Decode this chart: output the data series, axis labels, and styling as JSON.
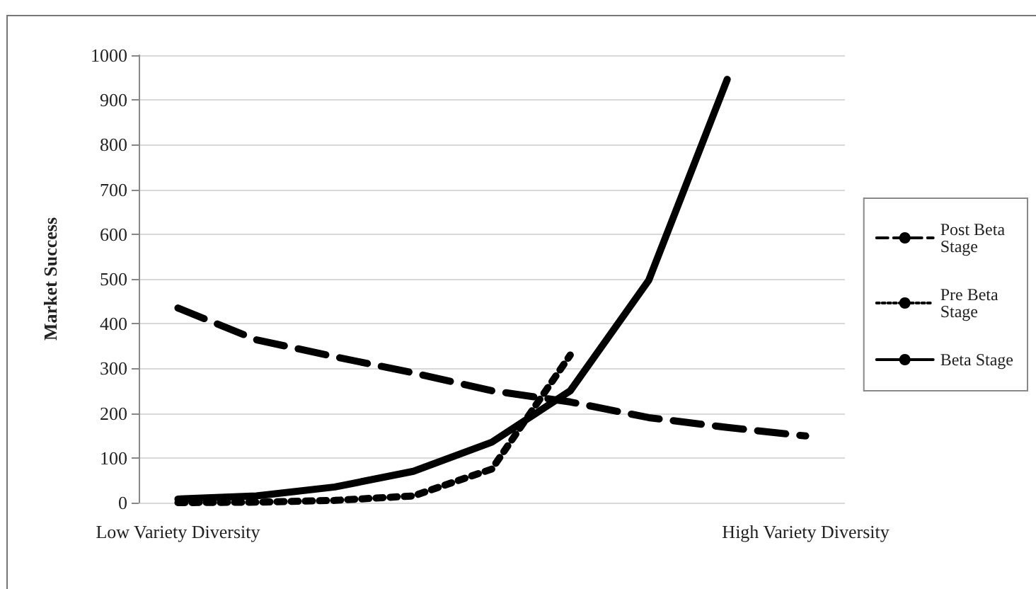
{
  "chart_data": {
    "type": "line",
    "ylabel": "Market Success",
    "categories": [
      "Low Variety Diversity",
      null,
      null,
      null,
      null,
      null,
      null,
      null,
      "High Variety Diversity"
    ],
    "ylim": [
      0,
      1000
    ],
    "yticks": [
      0,
      100,
      200,
      300,
      400,
      500,
      600,
      700,
      800,
      900,
      1000
    ],
    "grid": "y",
    "legend": "right",
    "marker": "none",
    "series": [
      {
        "name": "Post Beta Stage",
        "color": "#000000",
        "line_style": "dashed",
        "values": [
          435,
          364,
          326,
          290,
          250,
          225,
          190,
          168,
          149
        ]
      },
      {
        "name": "Pre Beta Stage",
        "color": "#000000",
        "line_style": "dotted",
        "values": [
          0,
          1,
          5,
          15,
          75,
          330,
          null,
          null,
          null
        ]
      },
      {
        "name": "Beta Stage",
        "color": "#000000",
        "line_style": "solid",
        "values": [
          8,
          15,
          35,
          70,
          135,
          250,
          497,
          946,
          null
        ]
      }
    ]
  }
}
